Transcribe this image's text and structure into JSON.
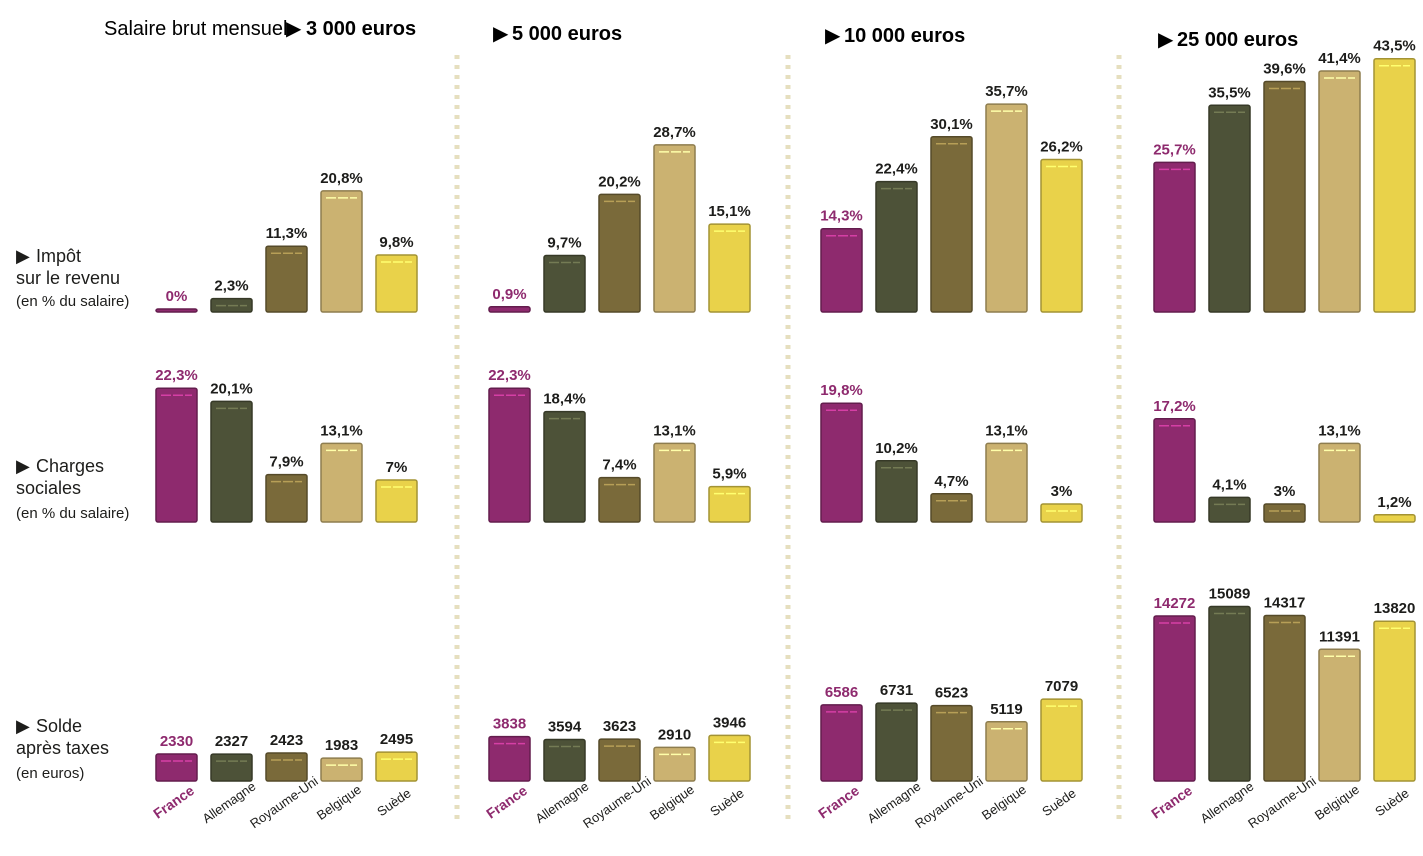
{
  "header": {
    "prefix": "Salaire brut mensuel",
    "columns": [
      "3 000 euros",
      "5 000 euros",
      "10 000 euros",
      "25 000 euros"
    ]
  },
  "rows": [
    {
      "line1": "Impôt",
      "line2": "sur le revenu",
      "unit": "(en % du salaire)"
    },
    {
      "line1": "Charges",
      "line2": "sociales",
      "unit": "(en % du salaire)"
    },
    {
      "line1": "Solde",
      "line2": "après taxes",
      "unit": "(en euros)"
    }
  ],
  "colors": {
    "France": "#8e2a6e",
    "Allemagne": "#4d5238",
    "Royaume-Uni": "#7a6a3a",
    "Belgique": "#cbb271",
    "Suède": "#e9d24a",
    "france_text": "#8e2a6e",
    "divider": "#e6dfbf"
  },
  "chart_data": [
    {
      "type": "bar",
      "panel": "Impôt sur le revenu — 3 000 euros",
      "categories": [
        "France",
        "Allemagne",
        "Royaume-Uni",
        "Belgique",
        "Suède"
      ],
      "values": [
        0,
        2.3,
        11.3,
        20.8,
        9.8
      ],
      "labels": [
        "0%",
        "2,3%",
        "11,3%",
        "20,8%",
        "9,8%"
      ],
      "ylim": [
        0,
        45
      ]
    },
    {
      "type": "bar",
      "panel": "Impôt sur le revenu — 5 000 euros",
      "categories": [
        "France",
        "Allemagne",
        "Royaume-Uni",
        "Belgique",
        "Suède"
      ],
      "values": [
        0.9,
        9.7,
        20.2,
        28.7,
        15.1
      ],
      "labels": [
        "0,9%",
        "9,7%",
        "20,2%",
        "28,7%",
        "15,1%"
      ],
      "ylim": [
        0,
        45
      ]
    },
    {
      "type": "bar",
      "panel": "Impôt sur le revenu — 10 000 euros",
      "categories": [
        "France",
        "Allemagne",
        "Royaume-Uni",
        "Belgique",
        "Suède"
      ],
      "values": [
        14.3,
        22.4,
        30.1,
        35.7,
        26.2
      ],
      "labels": [
        "14,3%",
        "22,4%",
        "30,1%",
        "35,7%",
        "26,2%"
      ],
      "ylim": [
        0,
        45
      ]
    },
    {
      "type": "bar",
      "panel": "Impôt sur le revenu — 25 000 euros",
      "categories": [
        "France",
        "Allemagne",
        "Royaume-Uni",
        "Belgique",
        "Suède"
      ],
      "values": [
        25.7,
        35.5,
        39.6,
        41.4,
        43.5
      ],
      "labels": [
        "25,7%",
        "35,5%",
        "39,6%",
        "41,4%",
        "43,5%"
      ],
      "ylim": [
        0,
        45
      ]
    },
    {
      "type": "bar",
      "panel": "Charges sociales — 3 000 euros",
      "categories": [
        "France",
        "Allemagne",
        "Royaume-Uni",
        "Belgique",
        "Suède"
      ],
      "values": [
        22.3,
        20.1,
        7.9,
        13.1,
        7
      ],
      "labels": [
        "22,3%",
        "20,1%",
        "7,9%",
        "13,1%",
        "7%"
      ],
      "ylim": [
        0,
        25
      ]
    },
    {
      "type": "bar",
      "panel": "Charges sociales — 5 000 euros",
      "categories": [
        "France",
        "Allemagne",
        "Royaume-Uni",
        "Belgique",
        "Suède"
      ],
      "values": [
        22.3,
        18.4,
        7.4,
        13.1,
        5.9
      ],
      "labels": [
        "22,3%",
        "18,4%",
        "7,4%",
        "13,1%",
        "5,9%"
      ],
      "ylim": [
        0,
        25
      ]
    },
    {
      "type": "bar",
      "panel": "Charges sociales — 10 000 euros",
      "categories": [
        "France",
        "Allemagne",
        "Royaume-Uni",
        "Belgique",
        "Suède"
      ],
      "values": [
        19.8,
        10.2,
        4.7,
        13.1,
        3
      ],
      "labels": [
        "19,8%",
        "10,2%",
        "4,7%",
        "13,1%",
        "3%"
      ],
      "ylim": [
        0,
        25
      ]
    },
    {
      "type": "bar",
      "panel": "Charges sociales — 25 000 euros",
      "categories": [
        "France",
        "Allemagne",
        "Royaume-Uni",
        "Belgique",
        "Suède"
      ],
      "values": [
        17.2,
        4.1,
        3,
        13.1,
        1.2
      ],
      "labels": [
        "17,2%",
        "4,1%",
        "3%",
        "13,1%",
        "1,2%"
      ],
      "ylim": [
        0,
        25
      ]
    },
    {
      "type": "bar",
      "panel": "Solde après taxes — 3 000 euros",
      "categories": [
        "France",
        "Allemagne",
        "Royaume-Uni",
        "Belgique",
        "Suède"
      ],
      "values": [
        2330,
        2327,
        2423,
        1983,
        2495
      ],
      "labels": [
        "2330",
        "2327",
        "2423",
        "1983",
        "2495"
      ],
      "ylim": [
        0,
        16000
      ]
    },
    {
      "type": "bar",
      "panel": "Solde après taxes — 5 000 euros",
      "categories": [
        "France",
        "Allemagne",
        "Royaume-Uni",
        "Belgique",
        "Suède"
      ],
      "values": [
        3838,
        3594,
        3623,
        2910,
        3946
      ],
      "labels": [
        "3838",
        "3594",
        "3623",
        "2910",
        "3946"
      ],
      "ylim": [
        0,
        16000
      ]
    },
    {
      "type": "bar",
      "panel": "Solde après taxes — 10 000 euros",
      "categories": [
        "France",
        "Allemagne",
        "Royaume-Uni",
        "Belgique",
        "Suède"
      ],
      "values": [
        6586,
        6731,
        6523,
        5119,
        7079
      ],
      "labels": [
        "6586",
        "6731",
        "6523",
        "5119",
        "7079"
      ],
      "ylim": [
        0,
        16000
      ]
    },
    {
      "type": "bar",
      "panel": "Solde après taxes — 25 000 euros",
      "categories": [
        "France",
        "Allemagne",
        "Royaume-Uni",
        "Belgique",
        "Suède"
      ],
      "values": [
        14272,
        15089,
        14317,
        11391,
        13820
      ],
      "labels": [
        "14272",
        "15089",
        "14317",
        "11391",
        "13820"
      ],
      "ylim": [
        0,
        16000
      ]
    }
  ],
  "x_labels": [
    "France",
    "Allemagne",
    "Royaume-Uni",
    "Belgique",
    "Suède"
  ]
}
